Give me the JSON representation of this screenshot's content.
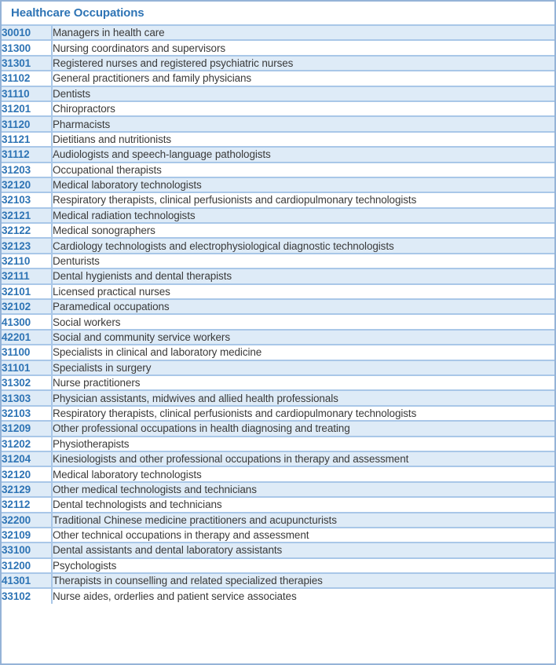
{
  "header": {
    "title": "Healthcare Occupations"
  },
  "colors": {
    "accent_text": "#2E74B5",
    "band_fill": "#DEEBF7",
    "inner_border": "#A9C7E8",
    "outer_border": "#95B3D7",
    "body_text": "#3A3A3A"
  },
  "table": {
    "columns": [
      "code",
      "occupation"
    ],
    "rows": [
      {
        "code": "30010",
        "name": "Managers in health care"
      },
      {
        "code": "31300",
        "name": "Nursing coordinators and supervisors"
      },
      {
        "code": "31301",
        "name": "Registered nurses and registered psychiatric nurses"
      },
      {
        "code": "31102",
        "name": "General practitioners and family physicians"
      },
      {
        "code": "31110",
        "name": "Dentists"
      },
      {
        "code": "31201",
        "name": "Chiropractors"
      },
      {
        "code": "31120",
        "name": "Pharmacists"
      },
      {
        "code": "31121",
        "name": "Dietitians and nutritionists"
      },
      {
        "code": "31112",
        "name": "Audiologists and speech-language pathologists"
      },
      {
        "code": "31203",
        "name": "Occupational therapists"
      },
      {
        "code": "32120",
        "name": "Medical laboratory technologists"
      },
      {
        "code": "32103",
        "name": "Respiratory therapists, clinical perfusionists and cardiopulmonary technologists"
      },
      {
        "code": "32121",
        "name": "Medical radiation technologists"
      },
      {
        "code": "32122",
        "name": "Medical sonographers"
      },
      {
        "code": "32123",
        "name": "Cardiology technologists and electrophysiological diagnostic technologists"
      },
      {
        "code": "32110",
        "name": "Denturists"
      },
      {
        "code": "32111",
        "name": "Dental hygienists and dental therapists"
      },
      {
        "code": "32101",
        "name": "Licensed practical nurses"
      },
      {
        "code": "32102",
        "name": "Paramedical occupations"
      },
      {
        "code": "41300",
        "name": "Social workers"
      },
      {
        "code": "42201",
        "name": "Social and community service workers"
      },
      {
        "code": "31100",
        "name": "Specialists in clinical and laboratory medicine"
      },
      {
        "code": "31101",
        "name": "Specialists in surgery"
      },
      {
        "code": "31302",
        "name": "Nurse practitioners"
      },
      {
        "code": "31303",
        "name": "Physician assistants, midwives and allied health professionals"
      },
      {
        "code": "32103",
        "name": "Respiratory therapists, clinical perfusionists and cardiopulmonary technologists"
      },
      {
        "code": "31209",
        "name": "Other professional occupations in health diagnosing and treating"
      },
      {
        "code": "31202",
        "name": "Physiotherapists"
      },
      {
        "code": "31204",
        "name": "Kinesiologists and other professional occupations in therapy and assessment"
      },
      {
        "code": "32120",
        "name": "Medical laboratory technologists"
      },
      {
        "code": "32129",
        "name": "Other medical technologists and technicians"
      },
      {
        "code": "32112",
        "name": "Dental technologists and technicians"
      },
      {
        "code": "32200",
        "name": "Traditional Chinese medicine practitioners and acupuncturists"
      },
      {
        "code": "32109",
        "name": "Other technical occupations in therapy and assessment"
      },
      {
        "code": "33100",
        "name": "Dental assistants and dental laboratory assistants"
      },
      {
        "code": "31200",
        "name": "Psychologists"
      },
      {
        "code": "41301",
        "name": "Therapists in counselling and related specialized therapies"
      },
      {
        "code": "33102",
        "name": "Nurse aides, orderlies and patient service associates"
      }
    ]
  }
}
